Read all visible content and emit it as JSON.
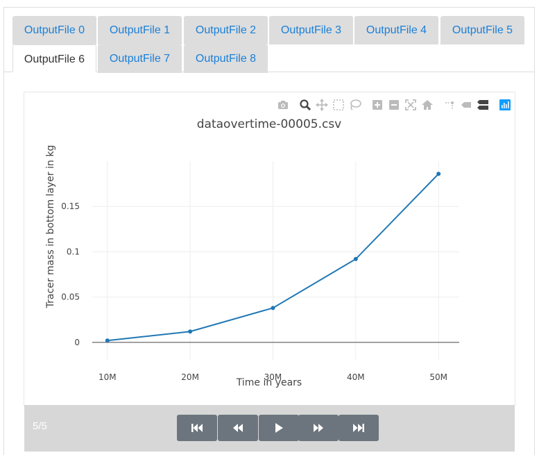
{
  "tabs": [
    {
      "label": "OutputFile 0"
    },
    {
      "label": "OutputFile 1"
    },
    {
      "label": "OutputFile 2"
    },
    {
      "label": "OutputFile 3"
    },
    {
      "label": "OutputFile 4"
    },
    {
      "label": "OutputFile 5"
    },
    {
      "label": "OutputFile 6"
    },
    {
      "label": "OutputFile 7"
    },
    {
      "label": "OutputFile 8"
    }
  ],
  "active_tab": 6,
  "modebar": {
    "icons": [
      "camera-icon",
      "zoom-icon",
      "pan-icon",
      "box-select-icon",
      "lasso-select-icon",
      "zoom-in-icon",
      "zoom-out-icon",
      "autoscale-icon",
      "reset-axes-icon",
      "spike-lines-icon",
      "hover-closest-icon",
      "hover-compare-icon",
      "plotly-logo-icon"
    ]
  },
  "chart_data": {
    "type": "line",
    "title": "dataovertime-00005.csv",
    "xlabel": "Time in years",
    "ylabel": "Tracer mass in bottom layer in kg",
    "x": [
      10000000,
      20000000,
      30000000,
      40000000,
      50000000
    ],
    "x_tick_labels": [
      "10M",
      "20M",
      "30M",
      "40M",
      "50M"
    ],
    "y_tick_values": [
      0,
      0.05,
      0.1,
      0.15
    ],
    "y_tick_labels": [
      "0",
      "0.05",
      "0.1",
      "0.15"
    ],
    "series": [
      {
        "values": [
          0.002,
          0.012,
          0.038,
          0.092,
          0.186
        ]
      }
    ],
    "xlim": [
      6500000,
      52500000
    ],
    "ylim": [
      -0.02,
      0.2
    ],
    "grid": true,
    "line_color": "#1f77b4"
  },
  "player": {
    "frame_label": "5/5",
    "buttons": [
      "first-frame",
      "previous-frame",
      "play",
      "next-frame",
      "last-frame"
    ]
  }
}
